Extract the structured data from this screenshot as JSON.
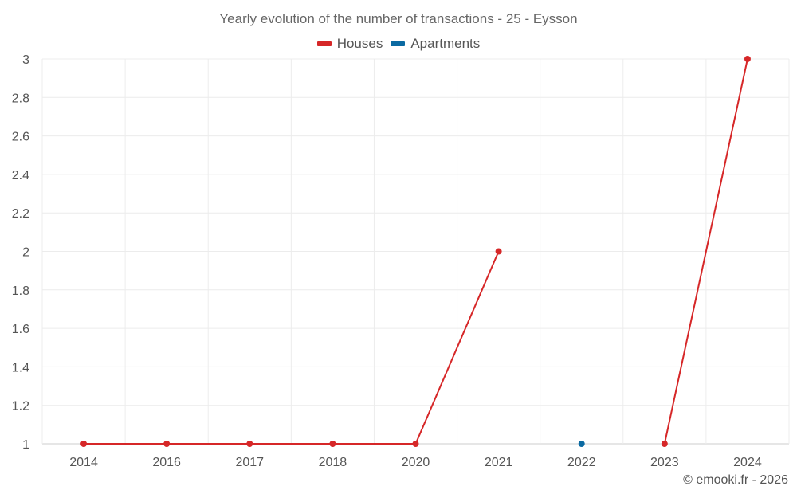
{
  "chart_data": {
    "type": "line",
    "title": "Yearly evolution of the number of transactions - 25 - Eysson",
    "xlabel": "",
    "ylabel": "",
    "categories": [
      "2014",
      "2016",
      "2017",
      "2018",
      "2020",
      "2021",
      "2022",
      "2023",
      "2024"
    ],
    "ylim": [
      1,
      3
    ],
    "yticks": [
      "1",
      "1.2",
      "1.4",
      "1.6",
      "1.8",
      "2",
      "2.2",
      "2.4",
      "2.6",
      "2.8",
      "3"
    ],
    "grid": true,
    "legend_position": "top-center",
    "series": [
      {
        "name": "Houses",
        "color": "#d62728",
        "values": [
          1,
          1,
          1,
          1,
          1,
          2,
          null,
          1,
          3
        ]
      },
      {
        "name": "Apartments",
        "color": "#0b6aa2",
        "values": [
          null,
          null,
          null,
          null,
          null,
          null,
          1,
          null,
          null
        ]
      }
    ]
  },
  "credit": "© emooki.fr - 2026"
}
